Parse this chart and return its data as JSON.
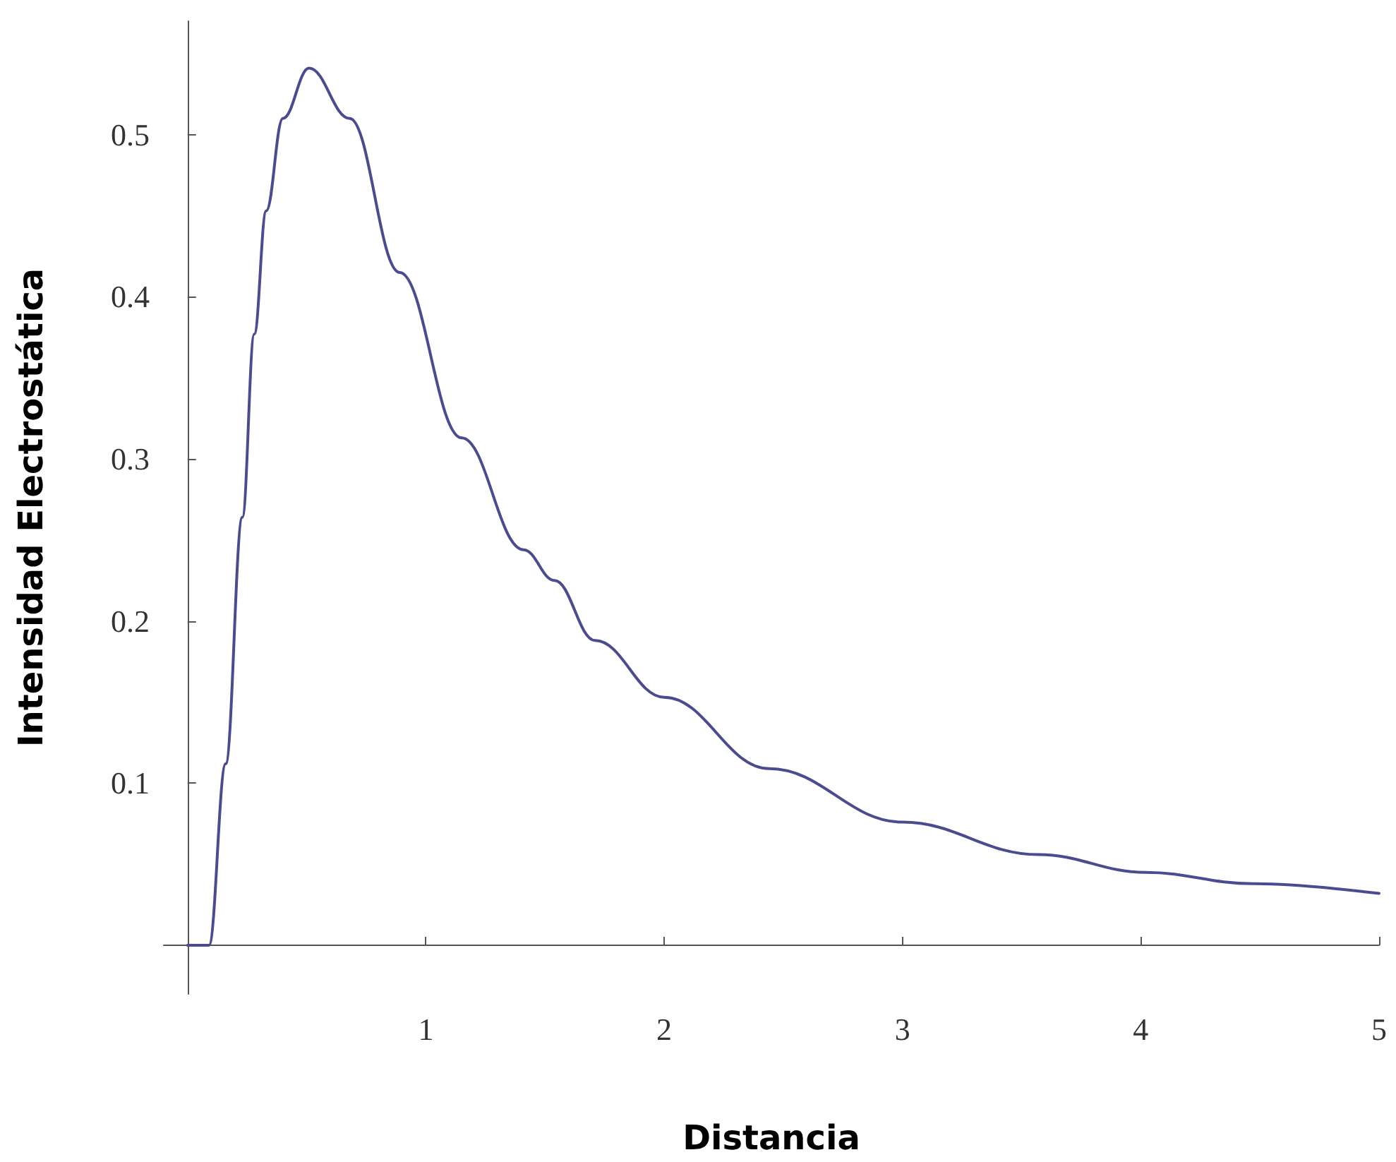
{
  "chart_data": {
    "type": "line",
    "xlabel": "Distancia",
    "ylabel": "Intensidad Electrostática",
    "x": [
      0,
      0.09,
      0.16,
      0.23,
      0.28,
      0.33,
      0.4,
      0.51,
      0.68,
      0.89,
      1.15,
      1.41,
      1.54,
      1.71,
      2.0,
      2.44,
      3.0,
      3.57,
      4.02,
      4.47,
      5.0
    ],
    "series": [
      {
        "color": "#4b4b8f",
        "values": [
          0,
          0,
          0.112,
          0.264,
          0.377,
          0.453,
          0.51,
          0.541,
          0.51,
          0.415,
          0.313,
          0.244,
          0.225,
          0.188,
          0.153,
          0.109,
          0.076,
          0.056,
          0.045,
          0.038,
          0.032
        ]
      }
    ],
    "xlim": [
      -0.1,
      5
    ],
    "ylim": [
      -0.03,
      0.57
    ],
    "xticks": [
      1,
      2,
      3,
      4,
      5
    ],
    "yticks": [
      0.1,
      0.2,
      0.3,
      0.4,
      0.5
    ],
    "grid": false,
    "marker": "none",
    "line_style": "solid"
  }
}
